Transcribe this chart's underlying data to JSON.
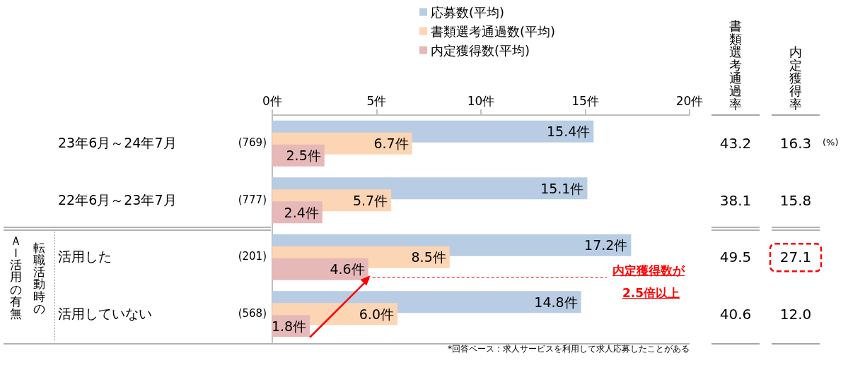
{
  "chart_data": [
    {
      "type": "bar",
      "orientation": "horizontal",
      "categories": [
        "23年6月～24年7月",
        "22年6月～23年7月",
        "活用した",
        "活用していない"
      ],
      "series": [
        {
          "name": "応募数(平均)",
          "color": "#b8cce4",
          "values": [
            15.4,
            15.1,
            17.2,
            14.8
          ],
          "value_labels": [
            "15.4件",
            "15.1件",
            "17.2件",
            "14.8件"
          ]
        },
        {
          "name": "書類選考通過数(平均)",
          "color": "#fcd5b4",
          "values": [
            6.7,
            5.7,
            8.5,
            6.0
          ],
          "value_labels": [
            "6.7件",
            "5.7件",
            "8.5件",
            "6.0件"
          ]
        },
        {
          "name": "内定獲得数(平均)",
          "color": "#e6b9b8",
          "values": [
            2.5,
            2.4,
            4.6,
            1.8
          ],
          "value_labels": [
            "2.5件",
            "2.4件",
            "4.6件",
            "1.8件"
          ]
        }
      ],
      "xlim": [
        0,
        20
      ],
      "xticks": [
        {
          "value": 0,
          "label": "0件"
        },
        {
          "value": 5,
          "label": "5件"
        },
        {
          "value": 10,
          "label": "10件"
        },
        {
          "value": 15,
          "label": "15件"
        },
        {
          "value": 20,
          "label": "20件"
        }
      ],
      "legend": "top",
      "grid": false,
      "annotations": [
        "(769)",
        "(777)",
        "(201)",
        "(568)",
        "ＡＩ活用の有無",
        "転職活動時の",
        "内定獲得数が",
        "2.5倍以上",
        "*回答ベース：求人サービスを利用して求人応募したことがある"
      ]
    },
    {
      "type": "other",
      "annotations": [
        "書類選考通過率",
        "内定獲得率",
        "43.2",
        "16.3",
        "38.1",
        "15.8",
        "49.5",
        "27.1",
        "40.6",
        "12.0",
        "(%)"
      ]
    }
  ]
}
